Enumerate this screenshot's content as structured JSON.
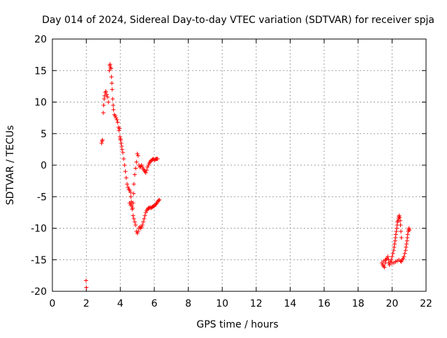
{
  "chart_data": {
    "type": "scatter",
    "title": "Day 014 of 2024, Sidereal Day-to-day VTEC variation (SDTVAR) for receiver spja",
    "xlabel": "GPS time / hours",
    "ylabel": "SDTVAR / TECUs",
    "xlim": [
      0,
      22
    ],
    "ylim": [
      -20,
      20
    ],
    "x_ticks": [
      0,
      2,
      4,
      6,
      8,
      10,
      12,
      14,
      16,
      18,
      20,
      22
    ],
    "y_ticks": [
      -20,
      -15,
      -10,
      -5,
      0,
      5,
      10,
      15,
      20
    ],
    "x_tick_labels": [
      "0",
      "2",
      "4",
      "6",
      "8",
      "10",
      "12",
      "14",
      "16",
      "18",
      "20",
      "22"
    ],
    "y_tick_labels": [
      "-20",
      "-15",
      "-10",
      "-5",
      "0",
      "5",
      "10",
      "15",
      "20"
    ],
    "grid": true,
    "marker": "+",
    "colors": {
      "series": "#ff0000",
      "grid": "#a0a0a0",
      "axes": "#000000"
    },
    "series": [
      {
        "name": "SDTVAR",
        "x": [
          1.98,
          2.0,
          2.9,
          2.92,
          2.95,
          3.0,
          3.02,
          3.05,
          3.08,
          3.12,
          3.15,
          3.2,
          3.25,
          3.3,
          3.35,
          3.38,
          3.4,
          3.42,
          3.45,
          3.48,
          3.5,
          3.52,
          3.55,
          3.58,
          3.6,
          3.65,
          3.7,
          3.75,
          3.8,
          3.85,
          3.9,
          3.92,
          3.95,
          3.98,
          4.0,
          4.02,
          4.05,
          4.08,
          4.1,
          4.15,
          4.2,
          4.25,
          4.3,
          4.35,
          4.4,
          4.45,
          4.5,
          4.55,
          4.6,
          4.62,
          4.65,
          4.68,
          4.7,
          4.72,
          4.75,
          4.78,
          4.8,
          4.85,
          4.9,
          4.95,
          5.0,
          5.05,
          5.1,
          5.15,
          5.2,
          5.25,
          5.3,
          5.35,
          5.4,
          5.45,
          5.5,
          5.55,
          5.6,
          5.65,
          5.7,
          5.75,
          5.8,
          5.85,
          5.9,
          5.95,
          6.0,
          6.05,
          6.1,
          6.15,
          6.2,
          4.75,
          4.8,
          4.85,
          4.9,
          4.95,
          5.0,
          5.05,
          5.1,
          5.15,
          5.2,
          5.25,
          5.3,
          5.35,
          5.4,
          5.45,
          5.5,
          5.55,
          5.6,
          5.65,
          5.7,
          5.75,
          5.8,
          5.85,
          5.9,
          5.95,
          6.0,
          6.05,
          6.1,
          6.15,
          6.2,
          6.25,
          6.3,
          4.55,
          4.6,
          4.65,
          19.4,
          19.45,
          19.5,
          19.55,
          19.6,
          19.65,
          19.7,
          19.75,
          19.8,
          19.85,
          19.9,
          19.95,
          20.0,
          20.05,
          20.1,
          20.12,
          20.15,
          20.18,
          20.2,
          20.22,
          20.25,
          20.28,
          20.3,
          20.32,
          20.35,
          20.38,
          20.4,
          20.42,
          20.45,
          20.48,
          20.5,
          20.52,
          20.55,
          19.5,
          19.6,
          19.7,
          19.8,
          19.9,
          20.0,
          20.1,
          20.2,
          20.3,
          20.4,
          20.5,
          20.55,
          20.6,
          20.65,
          20.7,
          20.75,
          20.8,
          20.82,
          20.85,
          20.88,
          20.9,
          20.92,
          20.95,
          20.98,
          21.0,
          21.02
        ],
        "y": [
          -18.3,
          -19.4,
          3.5,
          3.8,
          4.0,
          8.3,
          9.5,
          10.5,
          11.0,
          11.5,
          11.7,
          11.2,
          10.8,
          10.0,
          15.0,
          15.8,
          16.0,
          15.5,
          15.3,
          14.0,
          13.0,
          12.0,
          10.5,
          9.5,
          8.8,
          8.0,
          7.8,
          7.5,
          7.2,
          6.8,
          6.0,
          5.5,
          5.8,
          4.5,
          4.2,
          4.0,
          3.5,
          3.0,
          2.5,
          2.0,
          1.0,
          0.0,
          -1.0,
          -2.0,
          -3.0,
          -3.5,
          -3.8,
          -4.0,
          -4.3,
          -5.0,
          -6.0,
          -6.5,
          -7.0,
          -6.8,
          -6.0,
          -4.5,
          -3.0,
          -1.5,
          -0.5,
          0.5,
          1.8,
          1.5,
          0.0,
          -0.3,
          -0.2,
          0.0,
          -0.3,
          -0.6,
          -0.8,
          -1.0,
          -1.2,
          -0.8,
          -0.3,
          0.0,
          0.3,
          0.5,
          0.7,
          0.8,
          0.9,
          1.0,
          0.8,
          0.9,
          1.0,
          1.0,
          1.0,
          -8.0,
          -8.5,
          -9.0,
          -9.5,
          -10.5,
          -10.8,
          -10.5,
          -10.0,
          -9.8,
          -10.0,
          -9.8,
          -9.5,
          -9.0,
          -8.5,
          -8.0,
          -7.5,
          -7.2,
          -7.0,
          -6.8,
          -6.8,
          -6.7,
          -6.8,
          -6.7,
          -6.6,
          -6.5,
          -6.5,
          -6.3,
          -6.2,
          -6.0,
          -5.8,
          -5.6,
          -5.5,
          -6.0,
          -6.3,
          -5.8,
          -15.5,
          -15.8,
          -16.0,
          -16.2,
          -15.5,
          -15.0,
          -14.8,
          -14.5,
          -15.5,
          -15.8,
          -15.5,
          -15.0,
          -14.5,
          -14.0,
          -13.5,
          -13.0,
          -12.5,
          -12.0,
          -11.5,
          -11.0,
          -10.5,
          -10.0,
          -9.5,
          -9.0,
          -8.8,
          -8.5,
          -8.2,
          -8.0,
          -8.3,
          -8.8,
          -9.5,
          -10.5,
          -11.5,
          -15.2,
          -15.0,
          -14.8,
          -15.0,
          -15.3,
          -15.5,
          -15.5,
          -15.3,
          -15.2,
          -15.0,
          -15.2,
          -15.3,
          -15.0,
          -14.8,
          -14.5,
          -14.0,
          -13.5,
          -13.0,
          -12.5,
          -12.0,
          -11.5,
          -11.0,
          -10.5,
          -10.2,
          -10.0,
          -10.3
        ]
      }
    ]
  }
}
